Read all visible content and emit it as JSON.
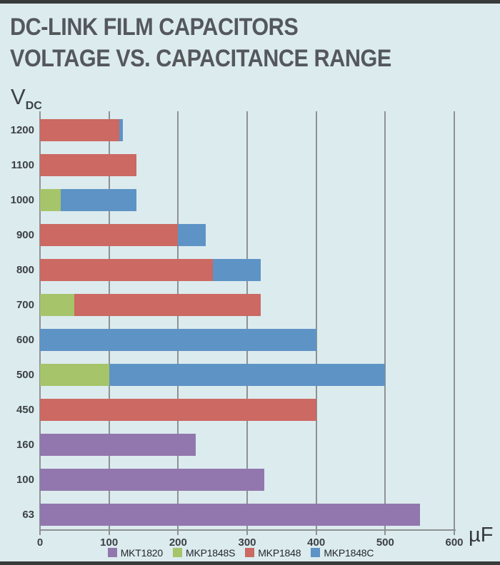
{
  "page": {
    "background_color": "#dcebee",
    "border_strip_color": "#383b3a"
  },
  "header": {
    "title_line1": "DC-LINK FILM CAPACITORS",
    "title_line2": "VOLTAGE VS. CAPACITANCE RANGE"
  },
  "chart_data": {
    "type": "bar",
    "orientation": "horizontal",
    "title": "DC-LINK FILM CAPACITORS VOLTAGE VS. CAPACITANCE RANGE",
    "ylabel": "V DC",
    "y_axis_label": "V",
    "y_axis_label_sub": "DC",
    "xlabel": "µF",
    "x_axis_unit": "µF",
    "xlim": [
      0,
      600
    ],
    "x_ticks": [
      0,
      100,
      200,
      300,
      400,
      500,
      600
    ],
    "grid": true,
    "gridline_color": "#8d9294",
    "legend_position": "bottom",
    "legend": [
      "MKT1820",
      "MKP1848S",
      "MKP1848",
      "MKP1848C"
    ],
    "series_colors": {
      "MKT1820": "#9277ae",
      "MKP1848S": "#a6c46a",
      "MKP1848": "#cb6962",
      "MKP1848C": "#5e93c6"
    },
    "rows": [
      {
        "voltage": "1200",
        "segments": [
          {
            "series": "MKP1848",
            "from": 0,
            "to": 115
          },
          {
            "series": "MKP1848C",
            "from": 115,
            "to": 120
          }
        ]
      },
      {
        "voltage": "1100",
        "segments": [
          {
            "series": "MKP1848",
            "from": 0,
            "to": 140
          }
        ]
      },
      {
        "voltage": "1000",
        "segments": [
          {
            "series": "MKP1848S",
            "from": 0,
            "to": 30
          },
          {
            "series": "MKP1848C",
            "from": 30,
            "to": 140
          }
        ]
      },
      {
        "voltage": "900",
        "segments": [
          {
            "series": "MKP1848",
            "from": 0,
            "to": 200
          },
          {
            "series": "MKP1848C",
            "from": 200,
            "to": 240
          }
        ]
      },
      {
        "voltage": "800",
        "segments": [
          {
            "series": "MKP1848",
            "from": 0,
            "to": 250
          },
          {
            "series": "MKP1848C",
            "from": 250,
            "to": 320
          }
        ]
      },
      {
        "voltage": "700",
        "segments": [
          {
            "series": "MKP1848S",
            "from": 0,
            "to": 50
          },
          {
            "series": "MKP1848",
            "from": 50,
            "to": 320
          }
        ]
      },
      {
        "voltage": "600",
        "segments": [
          {
            "series": "MKP1848C",
            "from": 0,
            "to": 400
          }
        ]
      },
      {
        "voltage": "500",
        "segments": [
          {
            "series": "MKP1848S",
            "from": 0,
            "to": 100
          },
          {
            "series": "MKP1848C",
            "from": 100,
            "to": 500
          }
        ]
      },
      {
        "voltage": "450",
        "segments": [
          {
            "series": "MKP1848",
            "from": 0,
            "to": 400
          }
        ]
      },
      {
        "voltage": "160",
        "segments": [
          {
            "series": "MKT1820",
            "from": 0,
            "to": 225
          }
        ]
      },
      {
        "voltage": "100",
        "segments": [
          {
            "series": "MKT1820",
            "from": 0,
            "to": 325
          }
        ]
      },
      {
        "voltage": "63",
        "segments": [
          {
            "series": "MKT1820",
            "from": 0,
            "to": 550
          }
        ]
      }
    ]
  }
}
